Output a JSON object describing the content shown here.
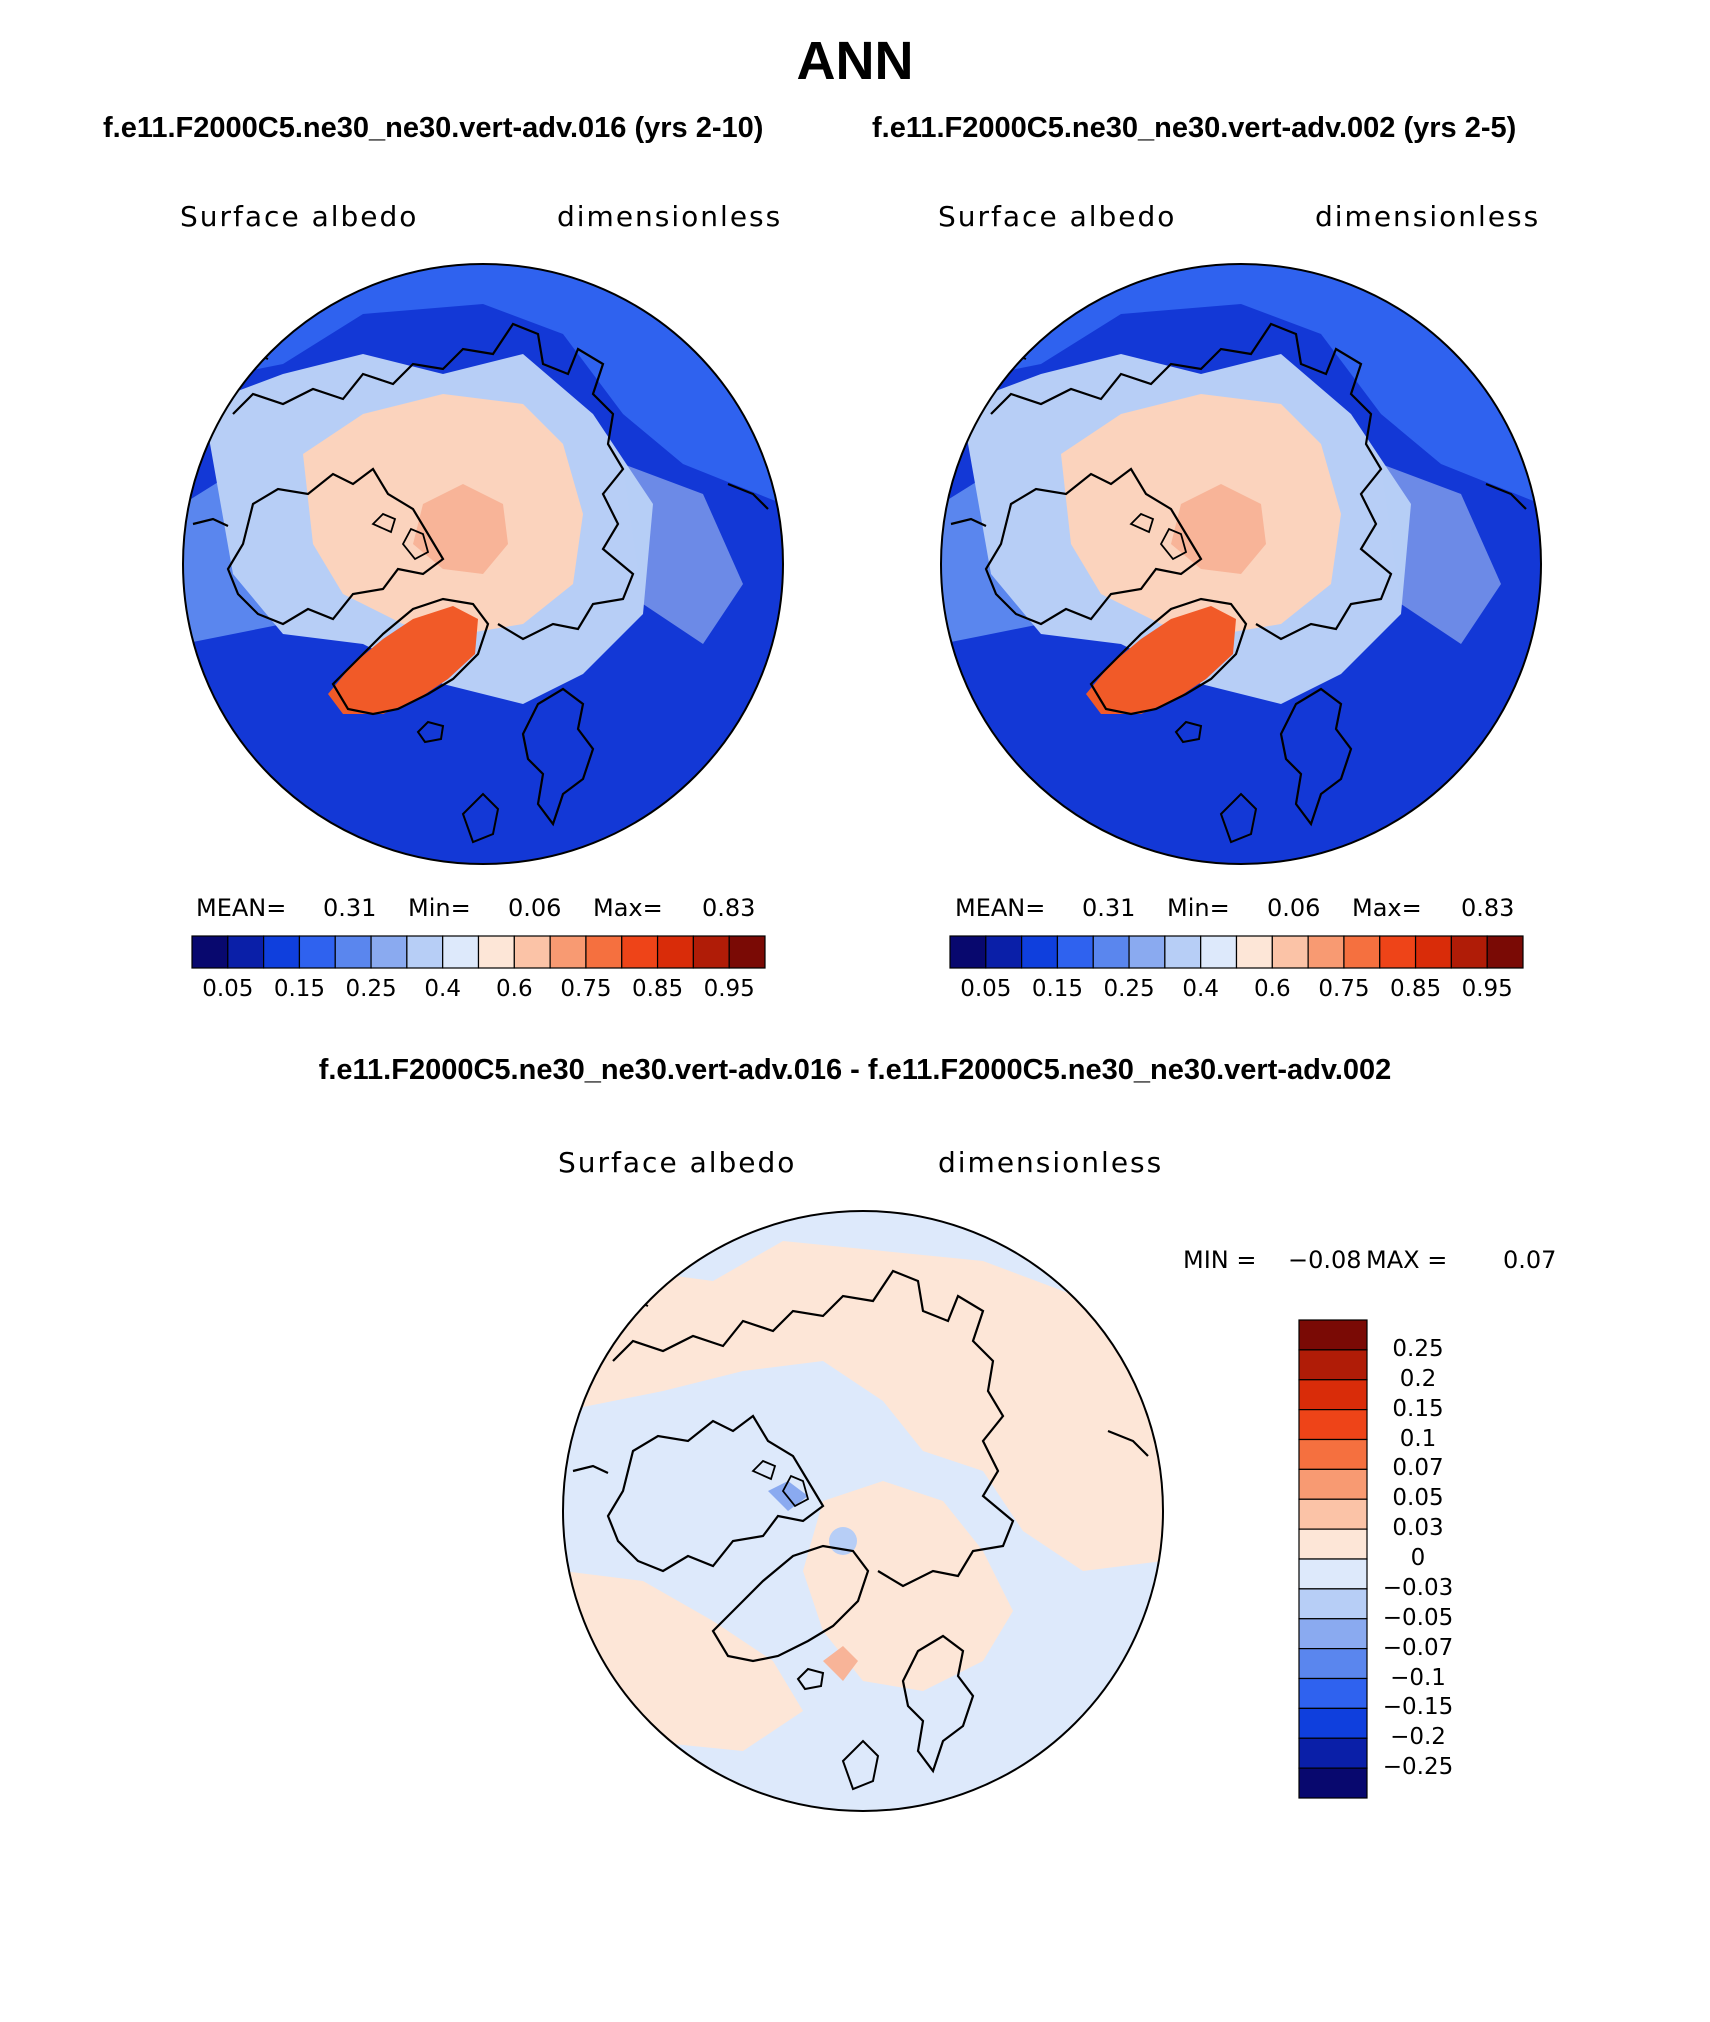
{
  "title": "ANN",
  "panel_titles": {
    "left": "f.e11.F2000C5.ne30_ne30.vert-adv.016 (yrs 2-10)",
    "right": "f.e11.F2000C5.ne30_ne30.vert-adv.002 (yrs 2-5)",
    "diff": "f.e11.F2000C5.ne30_ne30.vert-adv.016 - f.e11.F2000C5.ne30_ne30.vert-adv.002"
  },
  "maps": [
    {
      "variable": "Surface albedo",
      "units": "dimensionless",
      "stats": {
        "mean_label": "MEAN=",
        "mean": "0.31",
        "min_label": "Min=",
        "min": "0.06",
        "max_label": "Max=",
        "max": "0.83"
      }
    },
    {
      "variable": "Surface albedo",
      "units": "dimensionless",
      "stats": {
        "mean_label": "MEAN=",
        "mean": "0.31",
        "min_label": "Min=",
        "min": "0.06",
        "max_label": "Max=",
        "max": "0.83"
      }
    },
    {
      "variable": "Surface albedo",
      "units": "dimensionless",
      "stats": {
        "min_label": "MIN =",
        "min": "−0.08",
        "max_label": "MAX =",
        "max": "0.07"
      }
    }
  ],
  "colorbar_main": {
    "colors": [
      "#08086e",
      "#0a1fa8",
      "#0f3fdd",
      "#2f62ef",
      "#5a86ee",
      "#8aaaf0",
      "#b7cef6",
      "#dde9fb",
      "#fde6d7",
      "#fbc3a7",
      "#f89a72",
      "#f5703f",
      "#ee4418",
      "#d92c09",
      "#b01c07",
      "#7a0a05"
    ],
    "tick_labels": [
      "0.05",
      "0.15",
      "0.25",
      "0.4",
      "0.6",
      "0.75",
      "0.85",
      "0.95"
    ]
  },
  "colorbar_diff": {
    "colors": [
      "#7a0a05",
      "#b01c07",
      "#d92c09",
      "#ee4418",
      "#f5703f",
      "#f89a72",
      "#fbc3a7",
      "#fde6d7",
      "#dde9fb",
      "#b7cef6",
      "#8aaaf0",
      "#5a86ee",
      "#2f62ef",
      "#0f3fdd",
      "#0a1fa8",
      "#08086e"
    ],
    "tick_labels": [
      "0.25",
      "0.2",
      "0.15",
      "0.1",
      "0.07",
      "0.05",
      "0.03",
      "0",
      "−0.03",
      "−0.05",
      "−0.07",
      "−0.1",
      "−0.15",
      "−0.2",
      "−0.25"
    ]
  },
  "map_colors": {
    "ocean_low": "#1338d6",
    "ocean_mid": "#2f62ef",
    "ocean_high": "#5a86ee",
    "ice_edge": "#b7cef6",
    "sea_ice": "#fbd3bd",
    "sea_ice_core": "#f8b498",
    "greenland": "#f15a28",
    "diff_bg": "#dde9fb",
    "diff_pos": "#fde6d7"
  }
}
